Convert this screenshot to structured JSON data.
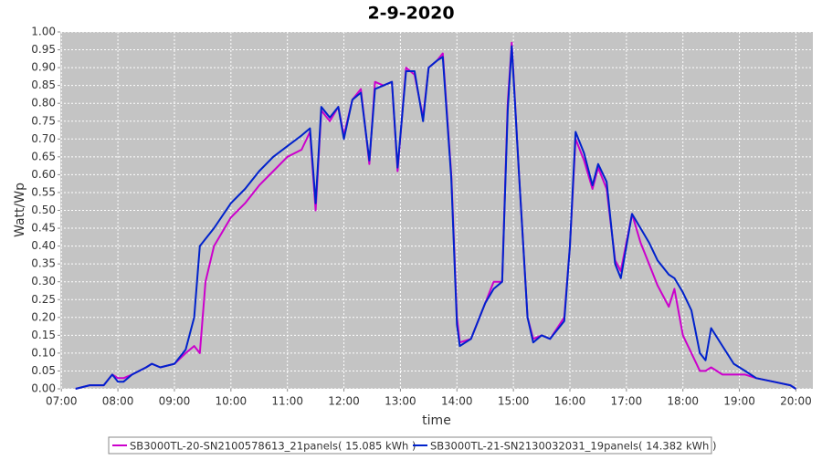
{
  "chart_data": {
    "type": "line",
    "title": "2-9-2020",
    "xlabel": "time",
    "ylabel": "Watt/Wp",
    "xlim": [
      6.98,
      20.3
    ],
    "ylim": [
      0,
      1
    ],
    "xticks": [
      {
        "value": 7,
        "label": "07:00"
      },
      {
        "value": 8,
        "label": "08:00"
      },
      {
        "value": 9,
        "label": "09:00"
      },
      {
        "value": 10,
        "label": "10:00"
      },
      {
        "value": 11,
        "label": "11:00"
      },
      {
        "value": 12,
        "label": "12:00"
      },
      {
        "value": 13,
        "label": "13:00"
      },
      {
        "value": 14,
        "label": "14:00"
      },
      {
        "value": 15,
        "label": "15:00"
      },
      {
        "value": 16,
        "label": "16:00"
      },
      {
        "value": 17,
        "label": "17:00"
      },
      {
        "value": 18,
        "label": "18:00"
      },
      {
        "value": 19,
        "label": "19:00"
      },
      {
        "value": 20,
        "label": "20:00"
      }
    ],
    "yticks": [
      {
        "value": 0,
        "label": "0.00"
      },
      {
        "value": 0.05,
        "label": "0.05"
      },
      {
        "value": 0.1,
        "label": "0.10"
      },
      {
        "value": 0.15,
        "label": "0.15"
      },
      {
        "value": 0.2,
        "label": "0.20"
      },
      {
        "value": 0.25,
        "label": "0.25"
      },
      {
        "value": 0.3,
        "label": "0.30"
      },
      {
        "value": 0.35,
        "label": "0.35"
      },
      {
        "value": 0.4,
        "label": "0.40"
      },
      {
        "value": 0.45,
        "label": "0.45"
      },
      {
        "value": 0.5,
        "label": "0.50"
      },
      {
        "value": 0.55,
        "label": "0.55"
      },
      {
        "value": 0.6,
        "label": "0.60"
      },
      {
        "value": 0.65,
        "label": "0.65"
      },
      {
        "value": 0.7,
        "label": "0.70"
      },
      {
        "value": 0.75,
        "label": "0.75"
      },
      {
        "value": 0.8,
        "label": "0.80"
      },
      {
        "value": 0.85,
        "label": "0.85"
      },
      {
        "value": 0.9,
        "label": "0.90"
      },
      {
        "value": 0.95,
        "label": "0.95"
      },
      {
        "value": 1,
        "label": "1.00"
      }
    ],
    "grid": true,
    "x": [
      7.25,
      7.5,
      7.75,
      7.9,
      8.0,
      8.1,
      8.25,
      8.5,
      8.6,
      8.75,
      9.0,
      9.2,
      9.35,
      9.45,
      9.55,
      9.7,
      10.0,
      10.25,
      10.5,
      10.75,
      11.0,
      11.25,
      11.4,
      11.5,
      11.6,
      11.75,
      11.9,
      12.0,
      12.15,
      12.3,
      12.45,
      12.55,
      12.7,
      12.85,
      12.95,
      13.1,
      13.25,
      13.4,
      13.5,
      13.65,
      13.75,
      13.9,
      14.0,
      14.05,
      14.25,
      14.5,
      14.65,
      14.8,
      14.9,
      14.97,
      15.1,
      15.25,
      15.35,
      15.5,
      15.65,
      15.9,
      16.0,
      16.1,
      16.25,
      16.4,
      16.5,
      16.65,
      16.8,
      16.9,
      17.1,
      17.25,
      17.4,
      17.55,
      17.75,
      17.85,
      18.0,
      18.15,
      18.3,
      18.4,
      18.5,
      18.7,
      18.9,
      19.1,
      19.3,
      19.6,
      19.9,
      20.0
    ],
    "series": [
      {
        "name": "SB3000TL-20-SN2100578613_21panels( 15.085 kWh )",
        "color": "#cc00cc",
        "values": [
          0.0,
          0.01,
          0.01,
          0.04,
          0.03,
          0.03,
          0.04,
          0.06,
          0.07,
          0.06,
          0.07,
          0.1,
          0.12,
          0.1,
          0.3,
          0.4,
          0.48,
          0.52,
          0.57,
          0.61,
          0.65,
          0.67,
          0.72,
          0.5,
          0.78,
          0.75,
          0.79,
          0.71,
          0.81,
          0.84,
          0.63,
          0.86,
          0.85,
          0.86,
          0.61,
          0.9,
          0.88,
          0.76,
          0.9,
          0.92,
          0.94,
          0.6,
          0.2,
          0.13,
          0.14,
          0.24,
          0.3,
          0.3,
          0.8,
          0.97,
          0.6,
          0.2,
          0.14,
          0.15,
          0.14,
          0.2,
          0.4,
          0.7,
          0.64,
          0.56,
          0.62,
          0.56,
          0.36,
          0.33,
          0.49,
          0.41,
          0.35,
          0.29,
          0.23,
          0.28,
          0.15,
          0.1,
          0.05,
          0.05,
          0.06,
          0.04,
          0.04,
          0.04,
          0.03,
          0.02,
          0.01,
          0.0
        ]
      },
      {
        "name": "SB3000TL-21-SN2130032031_19panels( 14.382 kWh )",
        "color": "#0022cc",
        "values": [
          0.0,
          0.01,
          0.01,
          0.04,
          0.02,
          0.02,
          0.04,
          0.06,
          0.07,
          0.06,
          0.07,
          0.11,
          0.2,
          0.4,
          0.42,
          0.45,
          0.52,
          0.56,
          0.61,
          0.65,
          0.68,
          0.71,
          0.73,
          0.52,
          0.79,
          0.76,
          0.79,
          0.7,
          0.81,
          0.83,
          0.64,
          0.84,
          0.85,
          0.86,
          0.62,
          0.89,
          0.89,
          0.75,
          0.9,
          0.92,
          0.93,
          0.59,
          0.18,
          0.12,
          0.14,
          0.24,
          0.28,
          0.3,
          0.78,
          0.96,
          0.6,
          0.2,
          0.13,
          0.15,
          0.14,
          0.19,
          0.4,
          0.72,
          0.66,
          0.57,
          0.63,
          0.58,
          0.35,
          0.31,
          0.49,
          0.45,
          0.41,
          0.36,
          0.32,
          0.31,
          0.27,
          0.22,
          0.1,
          0.08,
          0.17,
          0.12,
          0.07,
          0.05,
          0.03,
          0.02,
          0.01,
          0.0
        ]
      }
    ]
  }
}
